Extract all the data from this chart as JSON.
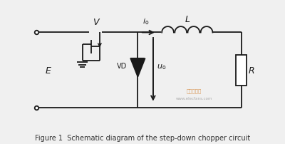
{
  "bg_color": "#f0f0f0",
  "line_color": "#1a1a1a",
  "title": "Figure 1  Schematic diagram of the step-down chopper circuit",
  "title_fontsize": 7,
  "title_color": "#333333",
  "watermark_line1": "电子发烧友",
  "watermark_line2": "www.elecfans.com",
  "E_label": "E",
  "V_label": "V",
  "L_label": "L",
  "R_label": "R",
  "VD_label": "VD"
}
